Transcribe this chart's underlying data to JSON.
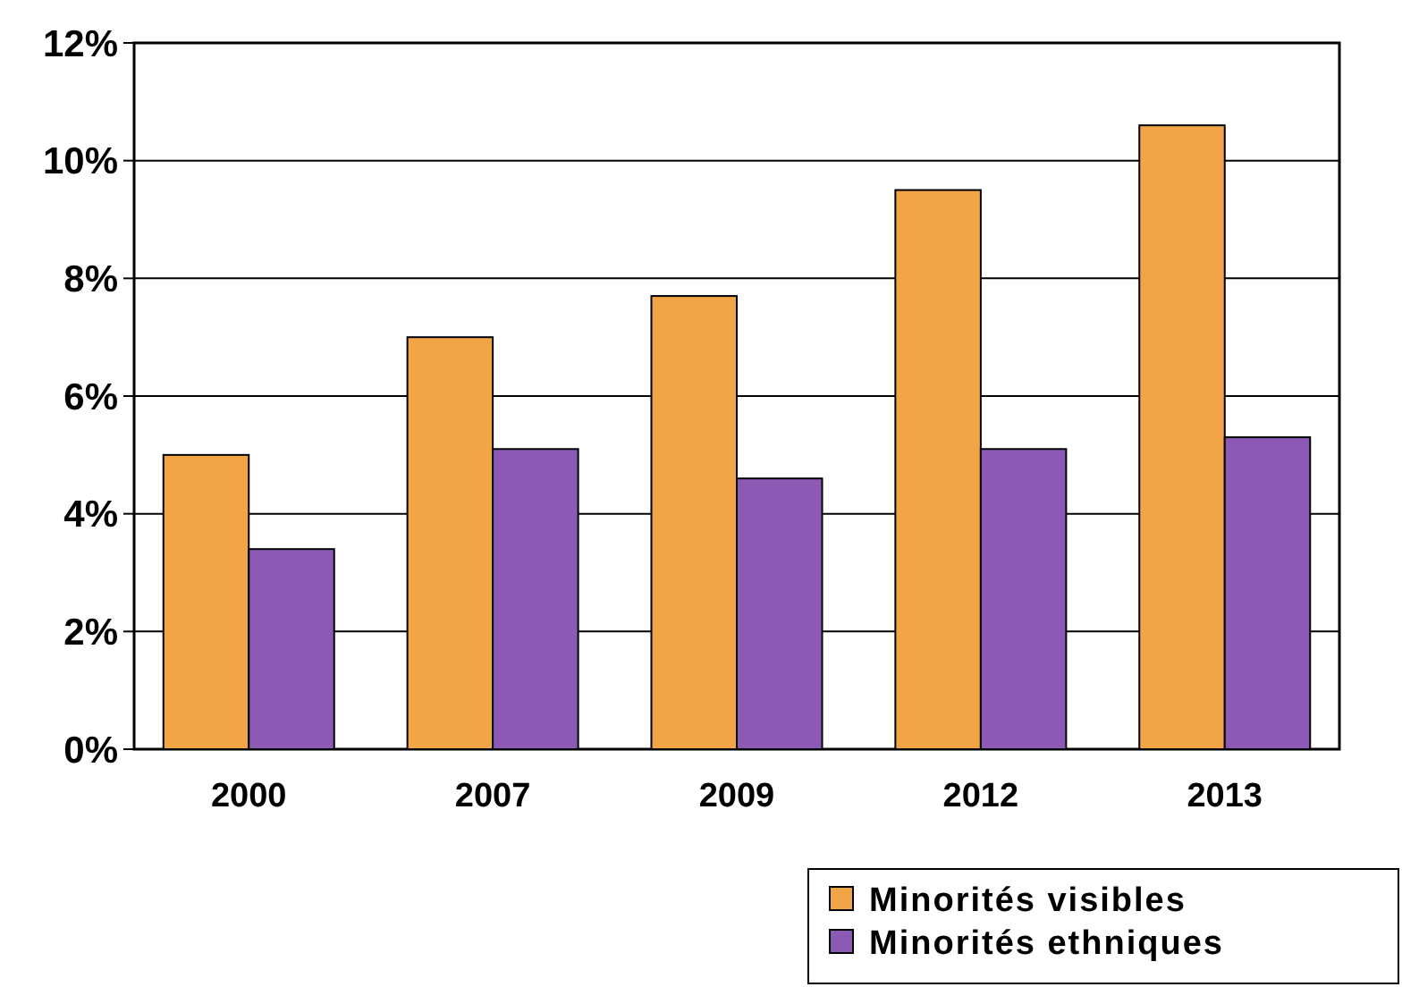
{
  "chart_data": {
    "type": "bar",
    "categories": [
      "2000",
      "2007",
      "2009",
      "2012",
      "2013"
    ],
    "series": [
      {
        "name": "Minorités visibles",
        "color": "#f2a546",
        "values": [
          5.0,
          7.0,
          7.7,
          9.5,
          10.6
        ]
      },
      {
        "name": "Minorités ethniques",
        "color": "#8c59b4",
        "values": [
          3.4,
          5.1,
          4.6,
          5.1,
          5.3
        ]
      }
    ],
    "ylim": [
      0,
      12
    ],
    "yticks": [
      {
        "value": 0,
        "label": "0%"
      },
      {
        "value": 2,
        "label": "2%"
      },
      {
        "value": 4,
        "label": "4%"
      },
      {
        "value": 6,
        "label": "6%"
      },
      {
        "value": 8,
        "label": "8%"
      },
      {
        "value": 10,
        "label": "10%"
      },
      {
        "value": 12,
        "label": "12%"
      }
    ],
    "grid": "y",
    "legend": "bottom right"
  }
}
